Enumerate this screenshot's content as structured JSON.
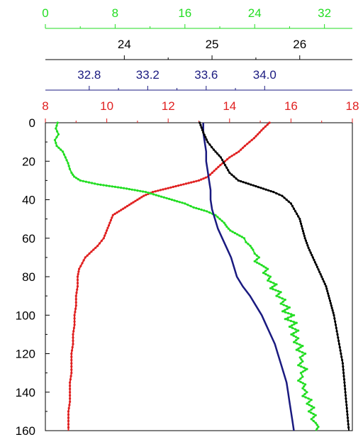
{
  "chart_data": {
    "type": "line",
    "title": "",
    "y_axis": {
      "ticks": [
        0,
        20,
        40,
        60,
        80,
        100,
        120,
        140,
        160
      ],
      "range": [
        0,
        160
      ],
      "inverted": true,
      "color": "#000000"
    },
    "x_axes": [
      {
        "ticks": [
          0,
          8,
          16,
          24,
          32
        ],
        "range": [
          0,
          35.2
        ],
        "color": "#22dd22",
        "position": "top-1"
      },
      {
        "ticks": [
          24,
          25,
          26
        ],
        "range": [
          23.1,
          26.6
        ],
        "color": "#000000",
        "position": "top-2"
      },
      {
        "ticks": [
          "32.8",
          "33.2",
          "33.6",
          "34.0"
        ],
        "range": [
          32.5,
          34.6
        ],
        "color": "#1a1a80",
        "position": "top-3"
      },
      {
        "ticks": [
          8,
          10,
          12,
          14,
          16,
          18
        ],
        "range": [
          8,
          18
        ],
        "color": "#e02020",
        "position": "top-4"
      }
    ],
    "series": [
      {
        "color": "#e02020",
        "axis": 3,
        "marker": "dot",
        "points": [
          [
            15.3,
            0
          ],
          [
            15.1,
            3
          ],
          [
            14.8,
            8
          ],
          [
            14.5,
            12
          ],
          [
            14.3,
            15
          ],
          [
            14.0,
            18
          ],
          [
            13.7,
            22
          ],
          [
            13.5,
            25
          ],
          [
            13.3,
            28
          ],
          [
            13.0,
            30
          ],
          [
            12.5,
            32
          ],
          [
            12.0,
            34
          ],
          [
            11.5,
            36
          ],
          [
            11.2,
            38
          ],
          [
            11.0,
            40
          ],
          [
            10.8,
            42
          ],
          [
            10.6,
            44
          ],
          [
            10.4,
            46
          ],
          [
            10.2,
            48
          ],
          [
            10.1,
            52
          ],
          [
            10.0,
            56
          ],
          [
            9.9,
            60
          ],
          [
            9.7,
            64
          ],
          [
            9.5,
            67
          ],
          [
            9.3,
            70
          ],
          [
            9.2,
            73
          ],
          [
            9.1,
            76
          ],
          [
            9.05,
            80
          ],
          [
            9.05,
            85
          ],
          [
            9.0,
            90
          ],
          [
            9.0,
            95
          ],
          [
            8.95,
            100
          ],
          [
            8.95,
            105
          ],
          [
            8.9,
            110
          ],
          [
            8.9,
            115
          ],
          [
            8.85,
            120
          ],
          [
            8.85,
            125
          ],
          [
            8.85,
            130
          ],
          [
            8.8,
            135
          ],
          [
            8.8,
            140
          ],
          [
            8.8,
            145
          ],
          [
            8.75,
            150
          ],
          [
            8.75,
            155
          ],
          [
            8.75,
            160
          ]
        ]
      },
      {
        "color": "#22dd22",
        "axis": 0,
        "marker": "dot",
        "points": [
          [
            1.4,
            0
          ],
          [
            1.2,
            3
          ],
          [
            1.5,
            6
          ],
          [
            1.1,
            9
          ],
          [
            1.3,
            12
          ],
          [
            2.0,
            15
          ],
          [
            2.3,
            18
          ],
          [
            2.6,
            21
          ],
          [
            2.8,
            24
          ],
          [
            3.0,
            26
          ],
          [
            3.3,
            28
          ],
          [
            4.0,
            30
          ],
          [
            6.0,
            32
          ],
          [
            9.0,
            34
          ],
          [
            11.5,
            36
          ],
          [
            13.0,
            38
          ],
          [
            14.5,
            40
          ],
          [
            16.0,
            42
          ],
          [
            17.0,
            44
          ],
          [
            18.5,
            46
          ],
          [
            19.5,
            48
          ],
          [
            20.0,
            50
          ],
          [
            20.5,
            52
          ],
          [
            20.8,
            54
          ],
          [
            21.2,
            56
          ],
          [
            22.0,
            58
          ],
          [
            22.8,
            60
          ],
          [
            23.0,
            62
          ],
          [
            23.5,
            64
          ],
          [
            23.8,
            66
          ],
          [
            24.0,
            68
          ],
          [
            24.5,
            70
          ],
          [
            24.0,
            72
          ],
          [
            24.8,
            74
          ],
          [
            25.5,
            76
          ],
          [
            25.0,
            78
          ],
          [
            25.8,
            80
          ],
          [
            25.5,
            82
          ],
          [
            26.5,
            84
          ],
          [
            25.8,
            86
          ],
          [
            27.0,
            88
          ],
          [
            26.5,
            90
          ],
          [
            27.5,
            92
          ],
          [
            27.0,
            94
          ],
          [
            28.0,
            96
          ],
          [
            27.2,
            98
          ],
          [
            28.5,
            100
          ],
          [
            27.5,
            102
          ],
          [
            28.8,
            104
          ],
          [
            28.0,
            106
          ],
          [
            29.0,
            108
          ],
          [
            28.2,
            110
          ],
          [
            29.0,
            112
          ],
          [
            28.5,
            114
          ],
          [
            29.5,
            116
          ],
          [
            28.8,
            118
          ],
          [
            29.8,
            120
          ],
          [
            29.2,
            122
          ],
          [
            29.5,
            124
          ],
          [
            29.0,
            126
          ],
          [
            30.0,
            128
          ],
          [
            29.3,
            130
          ],
          [
            29.5,
            132
          ],
          [
            29.0,
            134
          ],
          [
            29.8,
            136
          ],
          [
            29.5,
            138
          ],
          [
            30.0,
            140
          ],
          [
            29.5,
            142
          ],
          [
            30.5,
            144
          ],
          [
            30.0,
            146
          ],
          [
            30.8,
            148
          ],
          [
            30.2,
            150
          ],
          [
            31.0,
            152
          ],
          [
            30.5,
            154
          ],
          [
            31.0,
            156
          ],
          [
            31.3,
            158
          ],
          [
            31.0,
            160
          ]
        ]
      },
      {
        "color": "#1a1a80",
        "axis": 2,
        "marker": "line",
        "points": [
          [
            33.58,
            0
          ],
          [
            33.58,
            5
          ],
          [
            33.59,
            10
          ],
          [
            33.6,
            15
          ],
          [
            33.6,
            20
          ],
          [
            33.61,
            25
          ],
          [
            33.62,
            30
          ],
          [
            33.63,
            35
          ],
          [
            33.63,
            40
          ],
          [
            33.64,
            45
          ],
          [
            33.66,
            50
          ],
          [
            33.68,
            55
          ],
          [
            33.71,
            60
          ],
          [
            33.74,
            65
          ],
          [
            33.77,
            70
          ],
          [
            33.79,
            75
          ],
          [
            33.81,
            80
          ],
          [
            33.85,
            85
          ],
          [
            33.9,
            90
          ],
          [
            33.94,
            95
          ],
          [
            33.98,
            100
          ],
          [
            34.01,
            105
          ],
          [
            34.04,
            110
          ],
          [
            34.07,
            115
          ],
          [
            34.09,
            120
          ],
          [
            34.11,
            125
          ],
          [
            34.13,
            130
          ],
          [
            34.15,
            135
          ],
          [
            34.16,
            140
          ],
          [
            34.17,
            145
          ],
          [
            34.18,
            150
          ],
          [
            34.19,
            155
          ],
          [
            34.2,
            160
          ]
        ]
      },
      {
        "color": "#000000",
        "axis": 1,
        "marker": "dot",
        "points": [
          [
            24.86,
            0
          ],
          [
            24.9,
            5
          ],
          [
            24.95,
            10
          ],
          [
            25.02,
            14
          ],
          [
            25.1,
            18
          ],
          [
            25.15,
            22
          ],
          [
            25.2,
            26
          ],
          [
            25.3,
            30
          ],
          [
            25.5,
            33
          ],
          [
            25.7,
            36
          ],
          [
            25.8,
            38
          ],
          [
            25.9,
            42
          ],
          [
            25.95,
            46
          ],
          [
            26.0,
            50
          ],
          [
            26.03,
            55
          ],
          [
            26.06,
            60
          ],
          [
            26.1,
            65
          ],
          [
            26.15,
            70
          ],
          [
            26.2,
            75
          ],
          [
            26.25,
            80
          ],
          [
            26.3,
            85
          ],
          [
            26.33,
            90
          ],
          [
            26.36,
            95
          ],
          [
            26.39,
            100
          ],
          [
            26.41,
            105
          ],
          [
            26.43,
            110
          ],
          [
            26.45,
            115
          ],
          [
            26.47,
            120
          ],
          [
            26.49,
            125
          ],
          [
            26.5,
            130
          ],
          [
            26.51,
            135
          ],
          [
            26.52,
            140
          ],
          [
            26.53,
            145
          ],
          [
            26.54,
            150
          ],
          [
            26.55,
            155
          ],
          [
            26.56,
            160
          ]
        ]
      }
    ]
  }
}
